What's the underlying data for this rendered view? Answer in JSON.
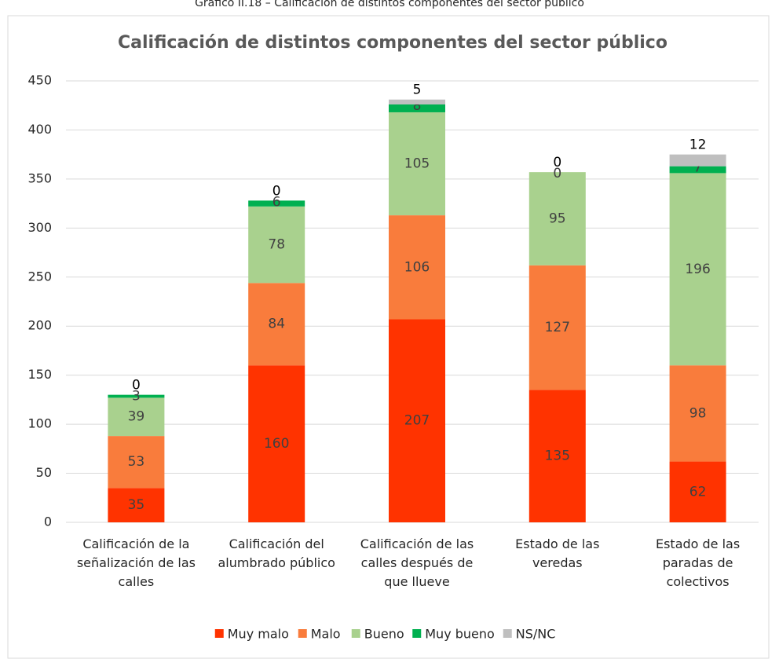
{
  "caption": "Gráfico II.18 – Calificación de distintos componentes del sector público",
  "chart_data": {
    "type": "stacked_bar",
    "title": "Calificación  de distintos componentes del sector público",
    "categories": [
      "Calificación de la señalización de las calles",
      "Calificación del alumbrado público",
      "Calificación de las calles después de que llueve",
      "Estado de las veredas",
      "Estado de las paradas de colectivos"
    ],
    "series": [
      {
        "name": "Muy malo",
        "color": "#ff3300",
        "values": [
          35,
          160,
          207,
          135,
          62
        ]
      },
      {
        "name": "Malo",
        "color": "#f97c3c",
        "values": [
          53,
          84,
          106,
          127,
          98
        ]
      },
      {
        "name": "Bueno",
        "color": "#a9d18e",
        "values": [
          39,
          78,
          105,
          95,
          196
        ]
      },
      {
        "name": "Muy bueno",
        "color": "#00b050",
        "values": [
          3,
          6,
          8,
          0,
          7
        ]
      },
      {
        "name": "NS/NC",
        "color": "#bfbfbf",
        "values": [
          0,
          0,
          5,
          0,
          12
        ]
      }
    ],
    "ylim": [
      0,
      450
    ],
    "yticks": [
      0,
      50,
      100,
      150,
      200,
      250,
      300,
      350,
      400,
      450
    ],
    "grid": true,
    "legend": "bottom"
  }
}
